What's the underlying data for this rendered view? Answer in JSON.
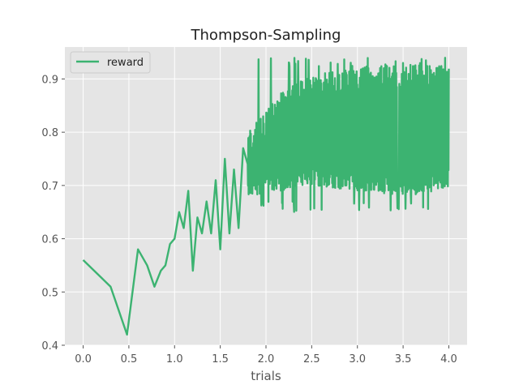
{
  "chart_data": {
    "type": "line",
    "title": "Thompson-Sampling",
    "xlabel": "trials",
    "ylabel": "",
    "xlim": [
      -0.2,
      4.2
    ],
    "ylim": [
      0.4,
      0.96
    ],
    "xticks": [
      "0.0",
      "0.5",
      "1.0",
      "1.5",
      "2.0",
      "2.5",
      "3.0",
      "3.5",
      "4.0"
    ],
    "yticks": [
      "0.4",
      "0.5",
      "0.6",
      "0.7",
      "0.8",
      "0.9"
    ],
    "grid": true,
    "legend_position": "top-left",
    "series": [
      {
        "name": "reward",
        "color": "#3cb371",
        "x": [
          0.0,
          0.3,
          0.48,
          0.6,
          0.7,
          0.78,
          0.85,
          0.9,
          0.95,
          1.0,
          1.05,
          1.1,
          1.15,
          1.2,
          1.25,
          1.3,
          1.35,
          1.4,
          1.45,
          1.5,
          1.55,
          1.6,
          1.65,
          1.7,
          1.75,
          1.8
        ],
        "values": [
          0.56,
          0.51,
          0.42,
          0.58,
          0.55,
          0.51,
          0.54,
          0.55,
          0.59,
          0.6,
          0.65,
          0.62,
          0.69,
          0.54,
          0.64,
          0.61,
          0.67,
          0.61,
          0.71,
          0.58,
          0.75,
          0.61,
          0.73,
          0.62,
          0.77,
          0.74
        ],
        "noisy_band": {
          "x_start": 1.8,
          "x_end": 4.0,
          "lower_envelope": [
            [
              1.8,
              0.68
            ],
            [
              2.5,
              0.7
            ],
            [
              3.0,
              0.69
            ],
            [
              3.5,
              0.68
            ],
            [
              4.0,
              0.69
            ]
          ],
          "upper_envelope": [
            [
              1.8,
              0.8
            ],
            [
              2.0,
              0.84
            ],
            [
              2.3,
              0.9
            ],
            [
              2.6,
              0.91
            ],
            [
              3.0,
              0.92
            ],
            [
              3.5,
              0.93
            ],
            [
              4.0,
              0.92
            ]
          ],
          "min_value": 0.65,
          "max_value": 0.94
        }
      }
    ]
  }
}
